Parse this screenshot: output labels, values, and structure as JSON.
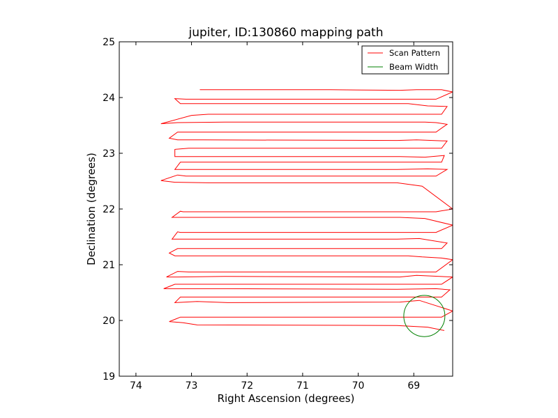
{
  "chart_data": {
    "type": "line",
    "title": "jupiter, ID:130860 mapping path",
    "xlabel": "Right Ascension (degrees)",
    "ylabel": "Declination (degrees)",
    "xlim": [
      74.3,
      68.3
    ],
    "ylim": [
      19,
      25
    ],
    "x_ticks": [
      74,
      73,
      72,
      71,
      70,
      69
    ],
    "y_ticks": [
      19,
      20,
      21,
      22,
      23,
      24,
      25
    ],
    "x_ticklabels": [
      "74",
      "73",
      "72",
      "71",
      "70",
      "69"
    ],
    "y_ticklabels": [
      "19",
      "20",
      "21",
      "22",
      "23",
      "24",
      "25"
    ],
    "grid": false,
    "legend_position": "top-right",
    "series": [
      {
        "name": "Scan Pattern",
        "color": "#ff0000",
        "x": [
          72.85,
          70.5,
          69.25,
          68.95,
          68.5,
          68.3,
          68.6,
          69.25,
          72.0,
          73.1,
          73.3,
          73.2,
          69.1,
          68.75,
          68.4,
          68.5,
          72.7,
          73.0,
          73.55,
          73.25,
          72.4,
          68.8,
          68.6,
          68.4,
          68.6,
          73.05,
          73.25,
          73.4,
          73.25,
          72.8,
          69.3,
          68.95,
          68.4,
          68.5,
          73.05,
          73.3,
          73.3,
          72.5,
          69.25,
          68.8,
          68.45,
          68.5,
          73.0,
          73.2,
          73.3,
          72.45,
          69.3,
          68.75,
          68.4,
          68.6,
          73.1,
          73.25,
          73.55,
          73.3,
          72.7,
          69.3,
          68.85,
          68.3,
          68.6,
          73.15,
          73.2,
          73.35,
          73.3,
          72.6,
          69.25,
          68.8,
          68.3,
          68.6,
          73.2,
          73.25,
          73.35,
          72.6,
          69.3,
          68.9,
          68.4,
          68.5,
          73.1,
          73.25,
          73.4,
          73.3,
          72.95,
          69.1,
          68.85,
          68.5,
          68.3,
          68.6,
          73.05,
          73.25,
          73.45,
          73.25,
          72.4,
          69.25,
          68.95,
          68.3,
          68.5,
          73.1,
          73.3,
          73.5,
          73.2,
          72.35,
          69.3,
          68.6,
          68.35,
          68.5,
          73.05,
          73.2,
          73.3,
          72.9,
          72.35,
          69.25,
          68.9,
          68.3,
          68.5,
          73.2,
          73.4,
          73.15,
          72.9,
          69.3,
          68.75,
          68.45
        ],
        "y": [
          24.14,
          24.14,
          24.13,
          24.14,
          24.14,
          24.1,
          23.97,
          23.97,
          23.97,
          23.97,
          23.98,
          23.89,
          23.89,
          23.85,
          23.84,
          23.7,
          23.7,
          23.68,
          23.53,
          23.55,
          23.56,
          23.56,
          23.55,
          23.52,
          23.38,
          23.38,
          23.38,
          23.27,
          23.24,
          23.24,
          23.23,
          23.24,
          23.22,
          23.09,
          23.09,
          23.07,
          22.94,
          22.94,
          22.94,
          22.93,
          22.96,
          22.84,
          22.84,
          22.84,
          22.71,
          22.71,
          22.71,
          22.72,
          22.71,
          22.59,
          22.59,
          22.61,
          22.51,
          22.48,
          22.47,
          22.47,
          22.41,
          22.0,
          21.95,
          21.95,
          21.96,
          21.85,
          21.85,
          21.85,
          21.85,
          21.83,
          21.71,
          21.58,
          21.58,
          21.59,
          21.46,
          21.46,
          21.46,
          21.47,
          21.39,
          21.29,
          21.29,
          21.29,
          21.21,
          21.16,
          21.16,
          21.16,
          21.14,
          21.12,
          21.09,
          20.87,
          20.87,
          20.88,
          20.78,
          20.78,
          20.79,
          20.78,
          20.81,
          20.78,
          20.65,
          20.65,
          20.65,
          20.57,
          20.57,
          20.57,
          20.56,
          20.57,
          20.55,
          20.42,
          20.42,
          20.42,
          20.32,
          20.34,
          20.32,
          20.33,
          20.36,
          20.17,
          20.06,
          20.06,
          19.98,
          19.96,
          19.92,
          19.91,
          19.88,
          19.82
        ]
      },
      {
        "name": "Beam Width",
        "color": "#008000",
        "shape": "circle",
        "center": [
          68.81,
          20.08
        ],
        "radius_deg": 0.37
      }
    ]
  }
}
